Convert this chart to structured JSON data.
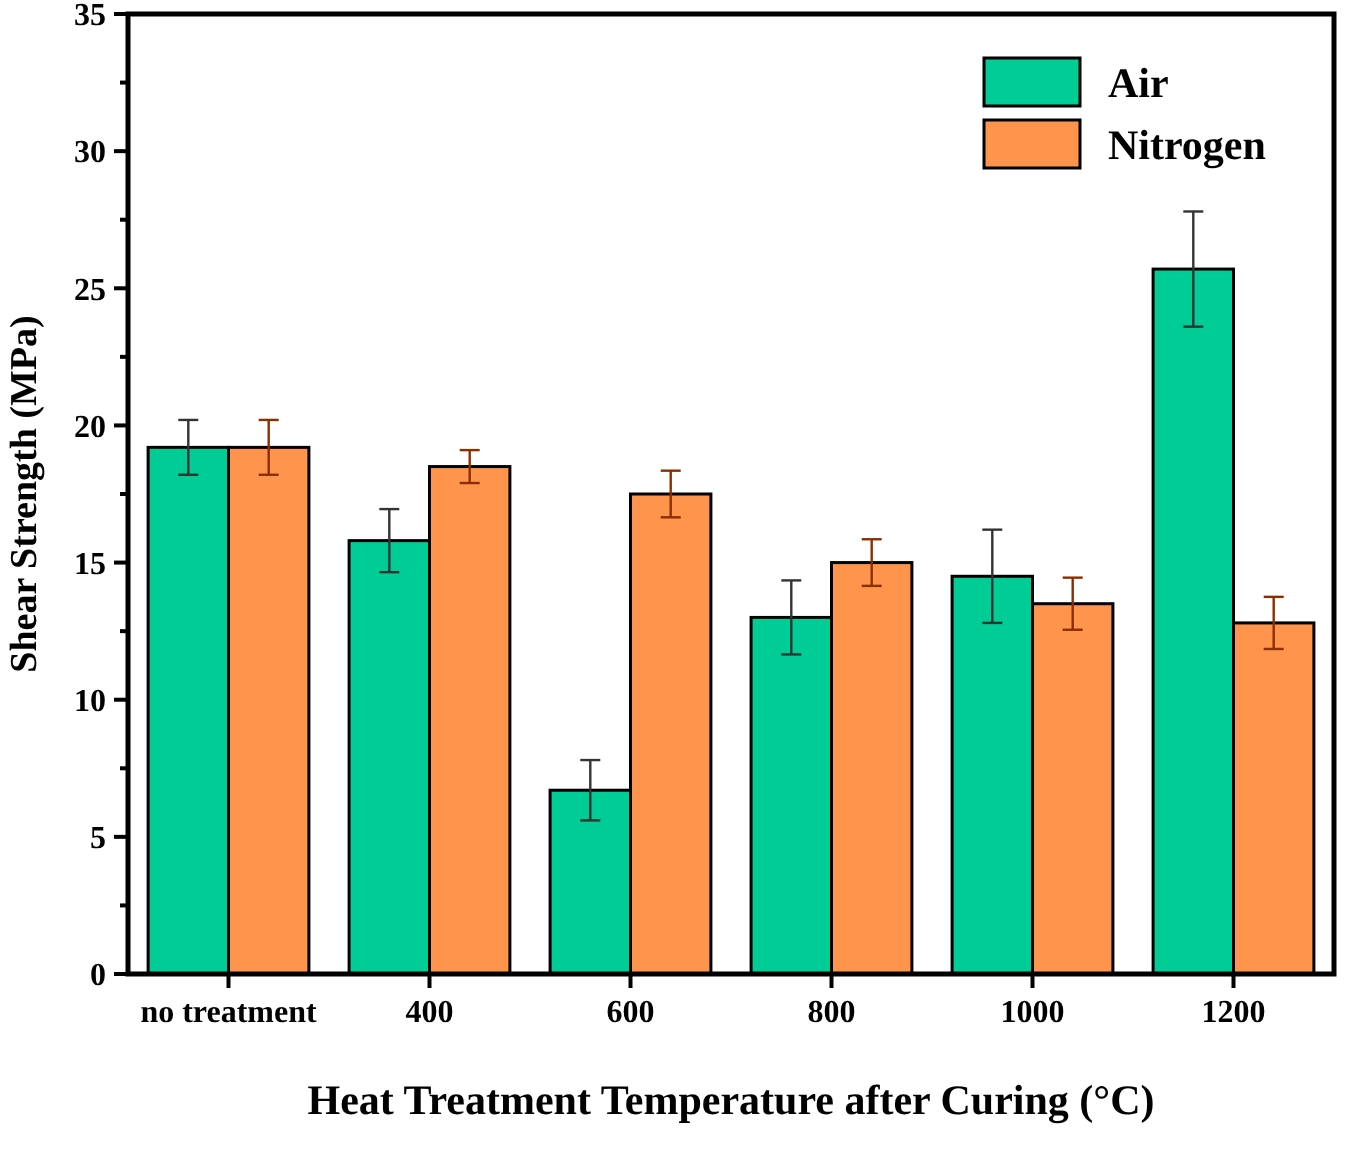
{
  "chart_data": {
    "type": "bar",
    "xlabel": "Heat Treatment Temperature after Curing (°C)",
    "ylabel": "Shear Strength (MPa)",
    "categories": [
      "no treatment",
      "400",
      "600",
      "800",
      "1000",
      "1200"
    ],
    "series": [
      {
        "name": "Air",
        "color": "#00cc96",
        "values": [
          19.2,
          15.8,
          6.7,
          13.0,
          14.5,
          25.7
        ],
        "errors": [
          1.0,
          1.15,
          1.1,
          1.35,
          1.7,
          2.1
        ]
      },
      {
        "name": "Nitrogen",
        "color": "#ff944d",
        "values": [
          19.2,
          18.5,
          17.5,
          15.0,
          13.5,
          12.8
        ],
        "errors": [
          1.0,
          0.6,
          0.85,
          0.85,
          0.95,
          0.95
        ]
      }
    ],
    "ylim": [
      0,
      35
    ],
    "yticks": [
      0,
      5,
      10,
      15,
      20,
      25,
      30,
      35
    ],
    "grid": false,
    "legend": "top right"
  }
}
